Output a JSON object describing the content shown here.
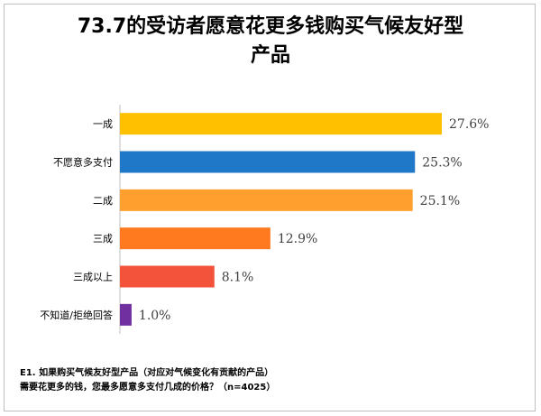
{
  "title": {
    "line1": "73.7的受访者愿意花更多钱购买气候友好型",
    "line2": "产品"
  },
  "chart_data": {
    "type": "bar",
    "orientation": "horizontal",
    "categories": [
      "一成",
      "不愿意多支付",
      "二成",
      "三成",
      "三成以上",
      "不知道/拒绝回答"
    ],
    "values": [
      27.6,
      25.3,
      25.1,
      12.9,
      8.1,
      1.0
    ],
    "value_labels": [
      "27.6%",
      "25.3%",
      "25.1%",
      "12.9%",
      "8.1%",
      "1.0%"
    ],
    "colors": [
      "#FFC000",
      "#1F78C8",
      "#FF9F2E",
      "#FF7A1F",
      "#F2533A",
      "#7030A0"
    ],
    "xlim": [
      0,
      30
    ],
    "grid": false,
    "title": "73.7的受访者愿意花更多钱购买气候友好型产品"
  },
  "footnote": {
    "line1": "E1. 如果购买气候友好型产品（对应对气候变化有贡献的产品）",
    "line2": "需要花更多的钱，您最多愿意多支付几成的价格？（n=4025）"
  }
}
